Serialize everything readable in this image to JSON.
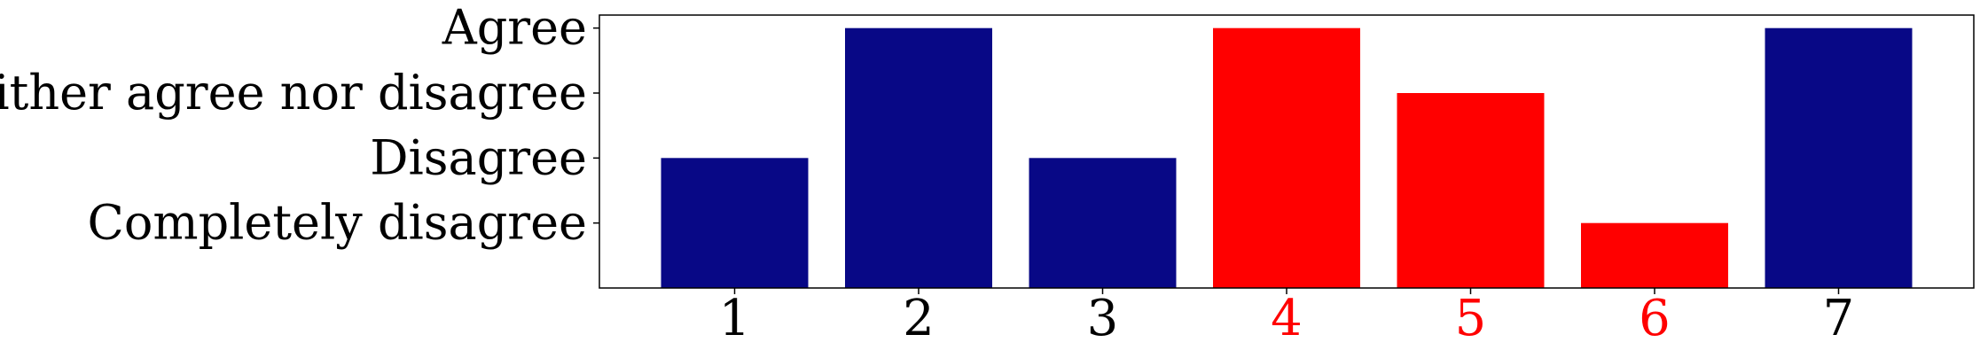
{
  "chart_data": {
    "type": "bar",
    "categories": [
      "1",
      "2",
      "3",
      "4",
      "5",
      "6",
      "7"
    ],
    "values": [
      2,
      4,
      2,
      4,
      3,
      1,
      4
    ],
    "bar_colors": [
      "#080886",
      "#080886",
      "#080886",
      "#ff0000",
      "#ff0000",
      "#ff0000",
      "#080886"
    ],
    "xtick_colors": [
      "#000000",
      "#000000",
      "#000000",
      "#ff0000",
      "#ff0000",
      "#ff0000",
      "#000000"
    ],
    "yticks": [
      {
        "value": 1,
        "label": "Completely disagree"
      },
      {
        "value": 2,
        "label": "Disagree"
      },
      {
        "value": 3,
        "label": "Neither agree nor disagree"
      },
      {
        "value": 4,
        "label": "Agree"
      }
    ],
    "ylim": [
      0,
      4.2
    ],
    "title": "",
    "xlabel": "",
    "ylabel": "",
    "grid": false,
    "legend": "none",
    "colors": {
      "primary": "#080886",
      "highlight": "#ff0000",
      "axis": "#000000"
    }
  }
}
